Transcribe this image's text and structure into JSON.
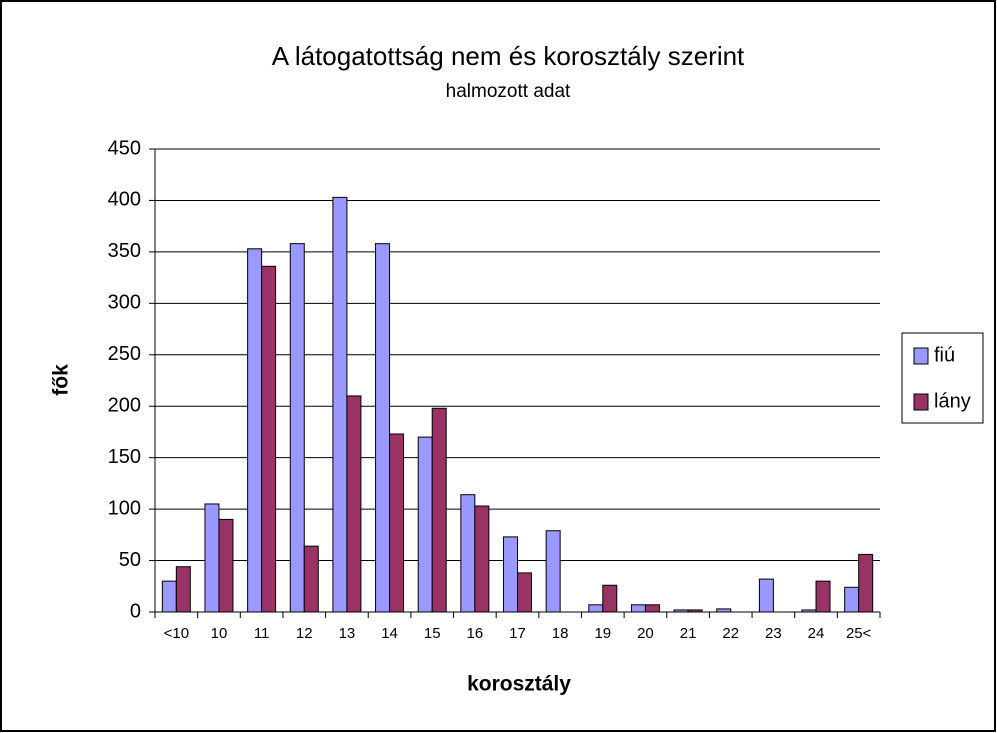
{
  "chart_data": {
    "type": "bar",
    "title": "A látogatottság nem és korosztály szerint",
    "subtitle": "halmozott adat",
    "x_label": "korosztály",
    "y_label": "fők",
    "categories": [
      "<10",
      "10",
      "11",
      "12",
      "13",
      "14",
      "15",
      "16",
      "17",
      "18",
      "19",
      "20",
      "21",
      "22",
      "23",
      "24",
      "25<"
    ],
    "series": [
      {
        "name": "fiú",
        "color": "#9999ff",
        "values": [
          30,
          105,
          353,
          358,
          403,
          358,
          170,
          114,
          73,
          79,
          7,
          7,
          2,
          3,
          32,
          2,
          24
        ]
      },
      {
        "name": "lány",
        "color": "#993366",
        "values": [
          44,
          90,
          336,
          64,
          210,
          173,
          198,
          103,
          38,
          0,
          26,
          7,
          2,
          0,
          0,
          30,
          56
        ]
      }
    ],
    "ylim": [
      0,
      450
    ],
    "yticks": [
      0,
      50,
      100,
      150,
      200,
      250,
      300,
      350,
      400,
      450
    ],
    "grid": true,
    "legend": "right"
  }
}
